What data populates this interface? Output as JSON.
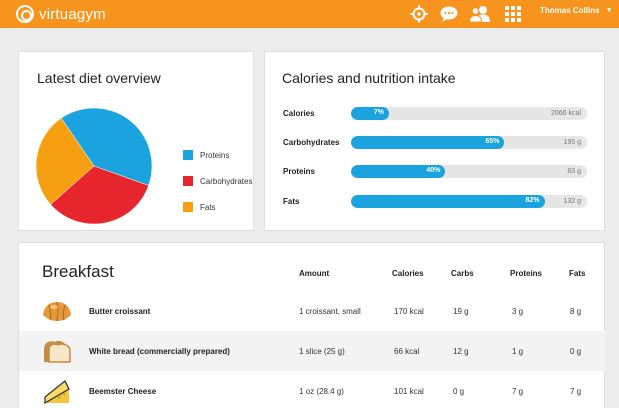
{
  "header": {
    "brand": "virtuagym",
    "user_name": "Thomas Collins",
    "icons": [
      "target-icon",
      "chat-icon",
      "friends-icon",
      "apps-grid-icon",
      "chevron-down-icon"
    ]
  },
  "diet_overview": {
    "title": "Latest diet overview",
    "legend": [
      {
        "label": "Proteins",
        "color": "#1aa3de"
      },
      {
        "label": "Carbohydrates",
        "color": "#e8262d"
      },
      {
        "label": "Fats",
        "color": "#f6a011"
      }
    ],
    "slices": [
      {
        "name": "Proteins",
        "share": 0.4,
        "color": "#1aa3de"
      },
      {
        "name": "Carbohydrates",
        "share": 0.33,
        "color": "#e8262d"
      },
      {
        "name": "Fats",
        "share": 0.27,
        "color": "#f6a011"
      }
    ]
  },
  "nutrition": {
    "title": "Calories and nutrition intake",
    "rows": [
      {
        "label": "Calories",
        "percent": 7,
        "percent_label": "7%",
        "value": "2066 kcal"
      },
      {
        "label": "Carbohydrates",
        "percent": 65,
        "percent_label": "65%",
        "value": "195 g"
      },
      {
        "label": "Proteins",
        "percent": 40,
        "percent_label": "40%",
        "value": "83 g"
      },
      {
        "label": "Fats",
        "percent": 82,
        "percent_label": "82%",
        "value": "132 g"
      }
    ]
  },
  "breakfast": {
    "title": "Breakfast",
    "columns": [
      "Amount",
      "Calories",
      "Carbs",
      "Proteins",
      "Fats"
    ],
    "items": [
      {
        "name": "Butter croissant",
        "amount": "1 croissant, small",
        "calories": "170 kcal",
        "carbs": "19 g",
        "proteins": "3 g",
        "fats": "8 g",
        "icon": "croissant-icon"
      },
      {
        "name": "White bread (commercially prepared)",
        "amount": "1 slice (25 g)",
        "calories": "66 kcal",
        "carbs": "12 g",
        "proteins": "1 g",
        "fats": "0 g",
        "icon": "bread-icon"
      },
      {
        "name": "Beemster Cheese",
        "amount": "1 oz (28.4 g)",
        "calories": "101 kcal",
        "carbs": "0 g",
        "proteins": "7 g",
        "fats": "7 g",
        "icon": "cheese-icon"
      }
    ]
  }
}
